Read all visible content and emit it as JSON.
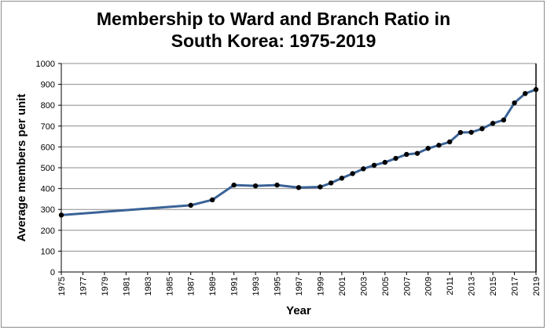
{
  "chart_data": {
    "type": "line",
    "title": [
      "Membership to Ward and Branch Ratio in",
      "South Korea: 1975-2019"
    ],
    "xlabel": "Year",
    "ylabel": "Average members per unit",
    "xlim": [
      1975,
      2019
    ],
    "ylim": [
      0,
      1000
    ],
    "yticks": [
      0,
      100,
      200,
      300,
      400,
      500,
      600,
      700,
      800,
      900,
      1000
    ],
    "xticks": [
      1975,
      1977,
      1979,
      1981,
      1983,
      1985,
      1987,
      1989,
      1991,
      1993,
      1995,
      1997,
      1999,
      2001,
      2003,
      2005,
      2007,
      2009,
      2011,
      2013,
      2015,
      2017,
      2019
    ],
    "grid": "horizontal",
    "legend": "none",
    "line_color": "#3a6396",
    "marker_color": "#000000",
    "series": [
      {
        "name": "Average members per unit",
        "x": [
          1975,
          1987,
          1989,
          1991,
          1993,
          1995,
          1997,
          1999,
          2000,
          2001,
          2002,
          2003,
          2004,
          2005,
          2006,
          2007,
          2008,
          2009,
          2010,
          2011,
          2012,
          2013,
          2014,
          2015,
          2016,
          2017,
          2018,
          2019
        ],
        "y": [
          273,
          320,
          346,
          417,
          413,
          417,
          405,
          408,
          427,
          450,
          472,
          495,
          512,
          526,
          545,
          564,
          569,
          593,
          608,
          624,
          669,
          670,
          687,
          713,
          729,
          811,
          856,
          875
        ]
      }
    ]
  }
}
